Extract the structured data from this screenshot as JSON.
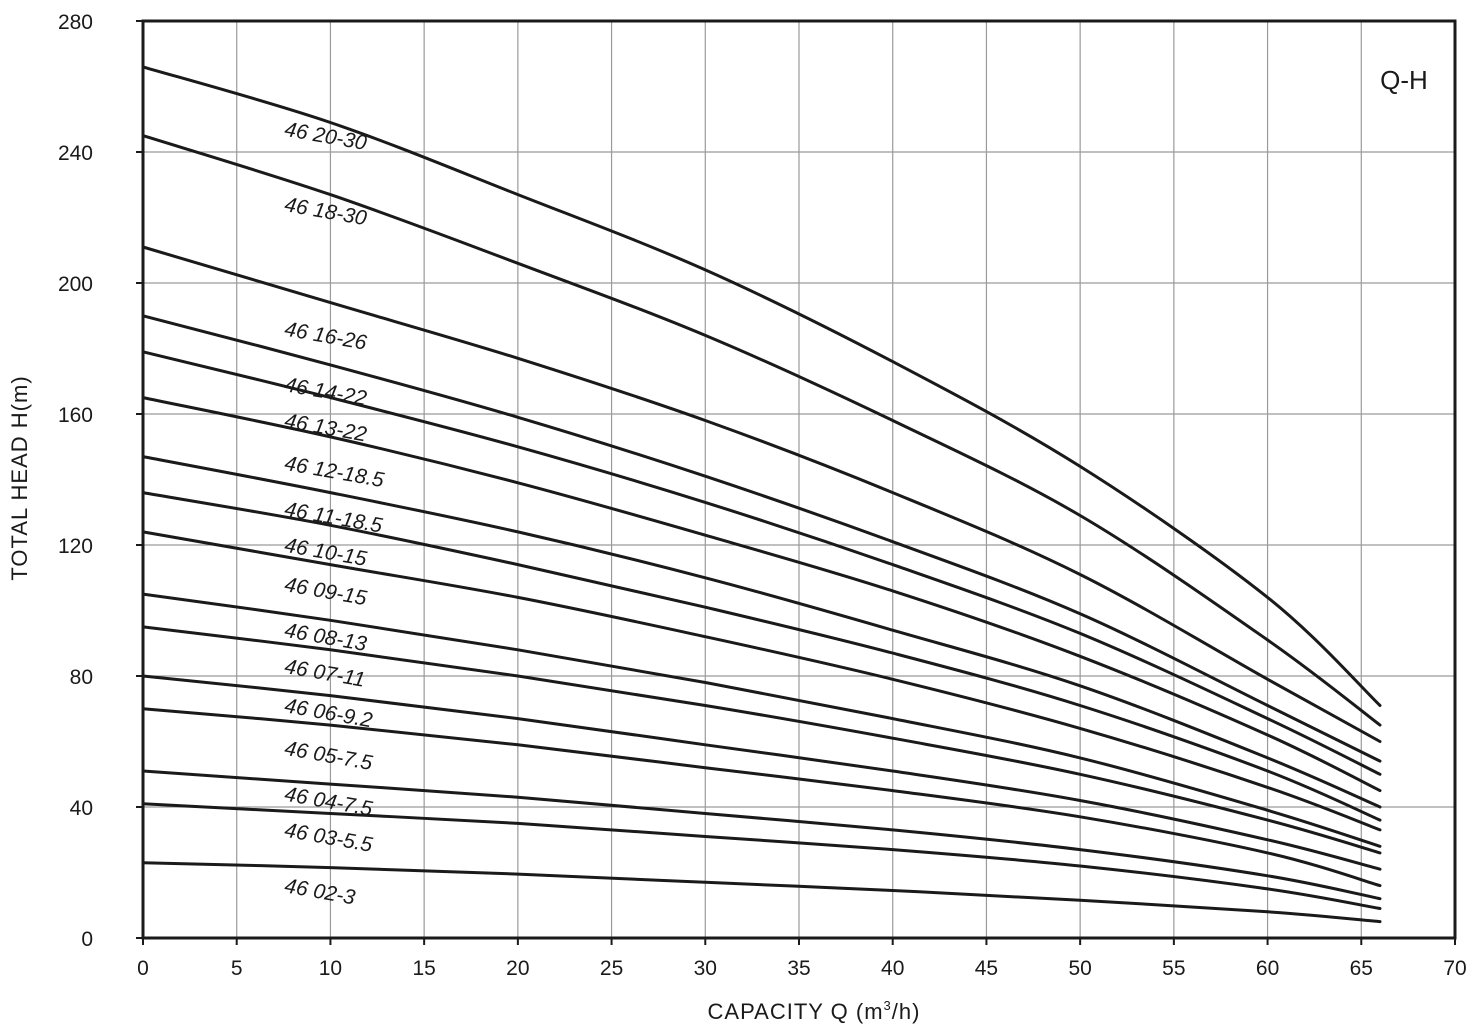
{
  "chart_data": {
    "type": "line",
    "title": "Q-H",
    "xlabel_main": "CAPACITY  Q (m",
    "xlabel_sup": "3",
    "xlabel_tail": "/h)",
    "ylabel": "TOTAL HEAD  H(m)",
    "xlim": [
      0,
      70
    ],
    "ylim": [
      0,
      280
    ],
    "xticks": [
      0,
      5,
      10,
      15,
      20,
      25,
      30,
      35,
      40,
      45,
      50,
      55,
      60,
      65,
      70
    ],
    "yticks": [
      0,
      40,
      80,
      120,
      160,
      200,
      240,
      280
    ],
    "grid": true,
    "colors": {
      "line": "#1a1a1a",
      "grid": "#9a9a9a",
      "axis": "#1a1a1a"
    },
    "series": [
      {
        "name": "46 20-30",
        "label_at": [
          7.5,
          245
        ],
        "x": [
          0,
          10,
          20,
          30,
          40,
          50,
          60,
          66
        ],
        "y": [
          266,
          249,
          227,
          204,
          176,
          144,
          104,
          71
        ]
      },
      {
        "name": "46 18-30",
        "label_at": [
          7.5,
          222
        ],
        "x": [
          0,
          10,
          20,
          30,
          40,
          50,
          60,
          66
        ],
        "y": [
          245,
          227,
          206,
          184,
          158,
          129,
          91,
          65
        ]
      },
      {
        "name": "46 16-26",
        "label_at": [
          7.5,
          184
        ],
        "x": [
          0,
          10,
          20,
          30,
          40,
          50,
          60,
          66
        ],
        "y": [
          211,
          194,
          177,
          158,
          136,
          111,
          79,
          60
        ]
      },
      {
        "name": "46 14-22",
        "label_at": [
          7.5,
          167
        ],
        "x": [
          0,
          10,
          20,
          30,
          40,
          50,
          60,
          66
        ],
        "y": [
          190,
          175,
          159,
          141,
          121,
          99,
          71,
          54
        ]
      },
      {
        "name": "46 13-22",
        "label_at": [
          7.5,
          156
        ],
        "x": [
          0,
          10,
          20,
          30,
          40,
          50,
          60,
          66
        ],
        "y": [
          179,
          165,
          150,
          133,
          114,
          93,
          67,
          50
        ]
      },
      {
        "name": "46 12-18.5",
        "label_at": [
          7.5,
          143
        ],
        "x": [
          0,
          10,
          20,
          30,
          40,
          50,
          60,
          66
        ],
        "y": [
          165,
          153,
          139,
          123,
          106,
          86,
          62,
          45
        ]
      },
      {
        "name": "46 11-18.5",
        "label_at": [
          7.5,
          129
        ],
        "x": [
          0,
          10,
          20,
          30,
          40,
          50,
          60,
          66
        ],
        "y": [
          147,
          136,
          124,
          110,
          94,
          77,
          55,
          40
        ]
      },
      {
        "name": "46 10-15",
        "label_at": [
          7.5,
          118
        ],
        "x": [
          0,
          10,
          20,
          30,
          40,
          50,
          60,
          66
        ],
        "y": [
          136,
          126,
          114,
          101,
          87,
          71,
          51,
          36
        ]
      },
      {
        "name": "46 09-15",
        "label_at": [
          7.5,
          106
        ],
        "x": [
          0,
          10,
          20,
          30,
          40,
          50,
          60,
          66
        ],
        "y": [
          124,
          114,
          104,
          92,
          79,
          64,
          46,
          33
        ]
      },
      {
        "name": "46 08-13",
        "label_at": [
          7.5,
          92
        ],
        "x": [
          0,
          10,
          20,
          30,
          40,
          50,
          60,
          66
        ],
        "y": [
          105,
          97,
          88,
          78,
          67,
          55,
          39,
          28
        ]
      },
      {
        "name": "46 07-11",
        "label_at": [
          7.5,
          81
        ],
        "x": [
          0,
          10,
          20,
          30,
          40,
          50,
          60,
          66
        ],
        "y": [
          95,
          88,
          80,
          71,
          61,
          50,
          36,
          26
        ]
      },
      {
        "name": "46 06-9.2",
        "label_at": [
          7.5,
          69
        ],
        "x": [
          0,
          10,
          20,
          30,
          40,
          50,
          60,
          66
        ],
        "y": [
          80,
          74,
          67,
          59,
          51,
          42,
          30,
          21
        ]
      },
      {
        "name": "46 05-7.5",
        "label_at": [
          7.5,
          56
        ],
        "x": [
          0,
          10,
          20,
          30,
          40,
          50,
          60,
          66
        ],
        "y": [
          70,
          65,
          59,
          52,
          45,
          37,
          26,
          16
        ]
      },
      {
        "name": "46 04-7.5",
        "label_at": [
          7.5,
          42
        ],
        "x": [
          0,
          10,
          20,
          30,
          40,
          50,
          60,
          66
        ],
        "y": [
          51,
          47,
          43,
          38,
          33,
          27,
          19,
          12
        ]
      },
      {
        "name": "46 03-5.5",
        "label_at": [
          7.5,
          31
        ],
        "x": [
          0,
          10,
          20,
          30,
          40,
          50,
          60,
          66
        ],
        "y": [
          41,
          38,
          35,
          31,
          27,
          22,
          15,
          9
        ]
      },
      {
        "name": "46 02-3",
        "label_at": [
          7.5,
          14
        ],
        "x": [
          0,
          10,
          20,
          30,
          40,
          50,
          60,
          66
        ],
        "y": [
          23,
          21.5,
          19.5,
          17,
          14.5,
          11.5,
          8,
          5
        ]
      }
    ]
  }
}
